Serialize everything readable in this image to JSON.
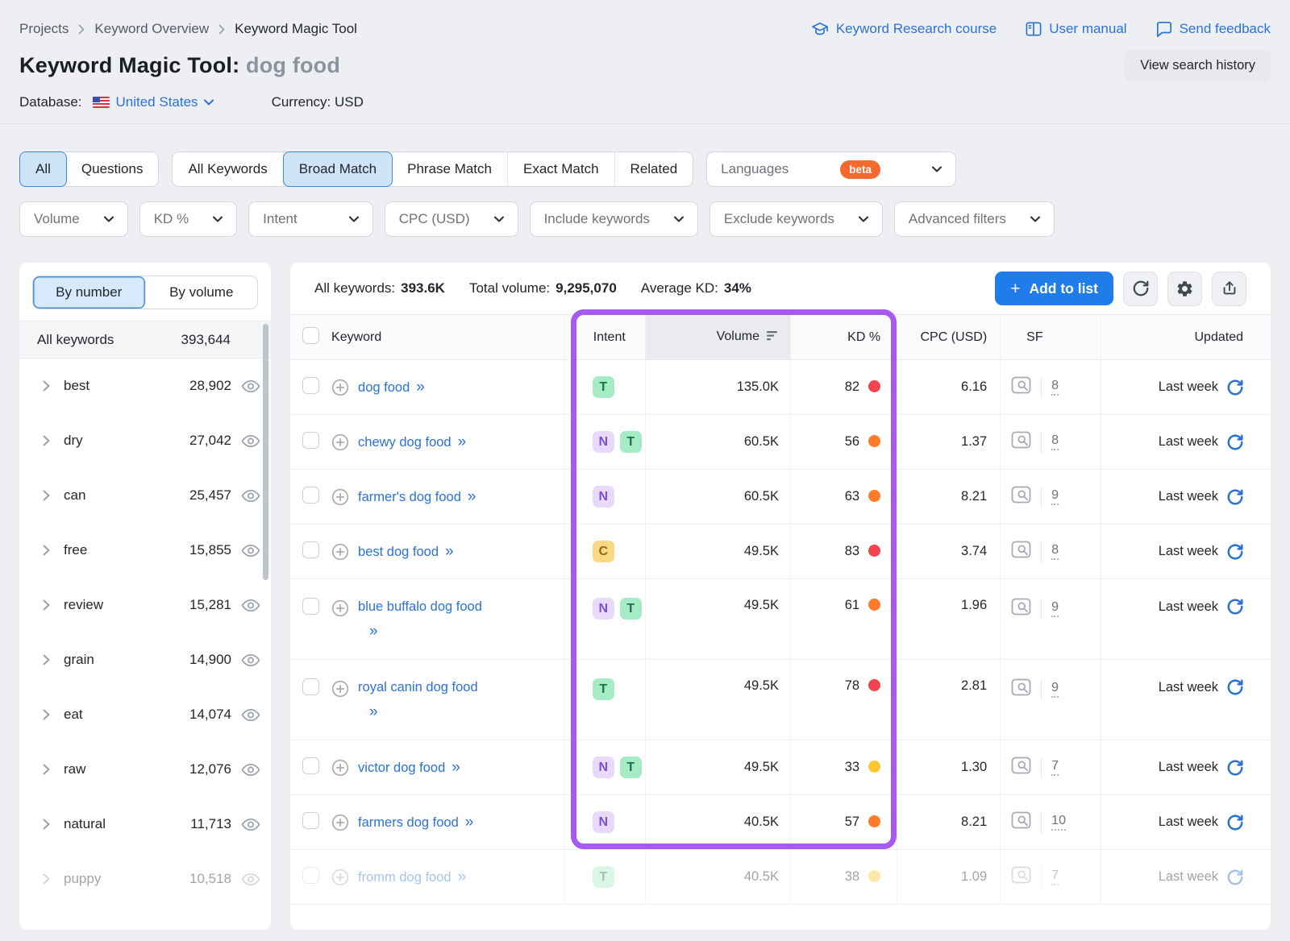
{
  "colors": {
    "accent_blue": "#2b72d8",
    "button_blue": "#1f7ce8",
    "highlight_purple": "#a65af2",
    "beta_orange": "#f4692e",
    "kd": {
      "red": "#f2434f",
      "orange": "#ff7c2b",
      "yellow": "#ffc831"
    },
    "intent": {
      "T": {
        "bg": "#a5ecc5",
        "fg": "#17754f"
      },
      "N": {
        "bg": "#e9dafc",
        "fg": "#7a4ddb"
      },
      "C": {
        "bg": "#fad884",
        "fg": "#8f6a13"
      }
    }
  },
  "glyphs": {
    "expand": "»",
    "plus": "+"
  },
  "breadcrumb": {
    "items": [
      "Projects",
      "Keyword Overview",
      "Keyword Magic Tool"
    ]
  },
  "header_links": [
    {
      "label": "Keyword Research course",
      "icon": "graduation-cap-icon"
    },
    {
      "label": "User manual",
      "icon": "book-icon"
    },
    {
      "label": "Send feedback",
      "icon": "feedback-icon"
    }
  ],
  "title": {
    "main": "Keyword Magic Tool:",
    "query": "dog food"
  },
  "actions": {
    "view_search_history": "View search history"
  },
  "meta": {
    "database_label": "Database:",
    "database_value": "United States",
    "currency": "Currency: USD"
  },
  "scope_tabs": {
    "items": [
      "All",
      "Questions"
    ],
    "selected": "All"
  },
  "match_tabs": {
    "items": [
      "All Keywords",
      "Broad Match",
      "Phrase Match",
      "Exact Match",
      "Related"
    ],
    "selected": "Broad Match"
  },
  "languages": {
    "label": "Languages",
    "badge": "beta"
  },
  "filter_pills": [
    "Volume",
    "KD %",
    "Intent",
    "CPC (USD)",
    "Include keywords",
    "Exclude keywords",
    "Advanced filters"
  ],
  "sidebar": {
    "tabs": {
      "items": [
        "By number",
        "By volume"
      ],
      "selected": "By number"
    },
    "all_row": {
      "label": "All keywords",
      "count": "393,644"
    },
    "groups": [
      {
        "label": "best",
        "count": "28,902"
      },
      {
        "label": "dry",
        "count": "27,042"
      },
      {
        "label": "can",
        "count": "25,457"
      },
      {
        "label": "free",
        "count": "15,855"
      },
      {
        "label": "review",
        "count": "15,281"
      },
      {
        "label": "grain",
        "count": "14,900"
      },
      {
        "label": "eat",
        "count": "14,074"
      },
      {
        "label": "raw",
        "count": "12,076"
      },
      {
        "label": "natural",
        "count": "11,713"
      },
      {
        "label": "puppy",
        "count": "10,518",
        "faded": true
      }
    ]
  },
  "toolbar": {
    "stats": [
      {
        "label": "All keywords:",
        "value": "393.6K"
      },
      {
        "label": "Total volume:",
        "value": "9,295,070"
      },
      {
        "label": "Average KD:",
        "value": "34%"
      }
    ],
    "add_to_list": "Add to list"
  },
  "table": {
    "headers": {
      "keyword": "Keyword",
      "intent": "Intent",
      "volume": "Volume",
      "kd": "KD %",
      "cpc": "CPC (USD)",
      "sf": "SF",
      "updated": "Updated"
    },
    "rows": [
      {
        "keyword": "dog food",
        "intents": [
          "T"
        ],
        "volume": "135.0K",
        "kd": "82",
        "kd_level": "red",
        "cpc": "6.16",
        "sf": "8",
        "updated": "Last week"
      },
      {
        "keyword": "chewy dog food",
        "intents": [
          "N",
          "T"
        ],
        "volume": "60.5K",
        "kd": "56",
        "kd_level": "orange",
        "cpc": "1.37",
        "sf": "8",
        "updated": "Last week"
      },
      {
        "keyword": "farmer's dog food",
        "intents": [
          "N"
        ],
        "volume": "60.5K",
        "kd": "63",
        "kd_level": "orange",
        "cpc": "8.21",
        "sf": "9",
        "updated": "Last week"
      },
      {
        "keyword": "best dog food",
        "intents": [
          "C"
        ],
        "volume": "49.5K",
        "kd": "83",
        "kd_level": "red",
        "cpc": "3.74",
        "sf": "8",
        "updated": "Last week"
      },
      {
        "keyword": "blue buffalo dog food",
        "intents": [
          "N",
          "T"
        ],
        "volume": "49.5K",
        "kd": "61",
        "kd_level": "orange",
        "cpc": "1.96",
        "sf": "9",
        "updated": "Last week",
        "wrap": true
      },
      {
        "keyword": "royal canin dog food",
        "intents": [
          "T"
        ],
        "volume": "49.5K",
        "kd": "78",
        "kd_level": "red",
        "cpc": "2.81",
        "sf": "9",
        "updated": "Last week",
        "wrap": true
      },
      {
        "keyword": "victor dog food",
        "intents": [
          "N",
          "T"
        ],
        "volume": "49.5K",
        "kd": "33",
        "kd_level": "yellow",
        "cpc": "1.30",
        "sf": "7",
        "updated": "Last week"
      },
      {
        "keyword": "farmers dog food",
        "intents": [
          "N"
        ],
        "volume": "40.5K",
        "kd": "57",
        "kd_level": "orange",
        "cpc": "8.21",
        "sf": "10",
        "updated": "Last week"
      },
      {
        "keyword": "fromm dog food",
        "intents": [
          "T"
        ],
        "volume": "40.5K",
        "kd": "38",
        "kd_level": "yellow",
        "cpc": "1.09",
        "sf": "7",
        "updated": "Last week",
        "faded": true
      }
    ]
  }
}
